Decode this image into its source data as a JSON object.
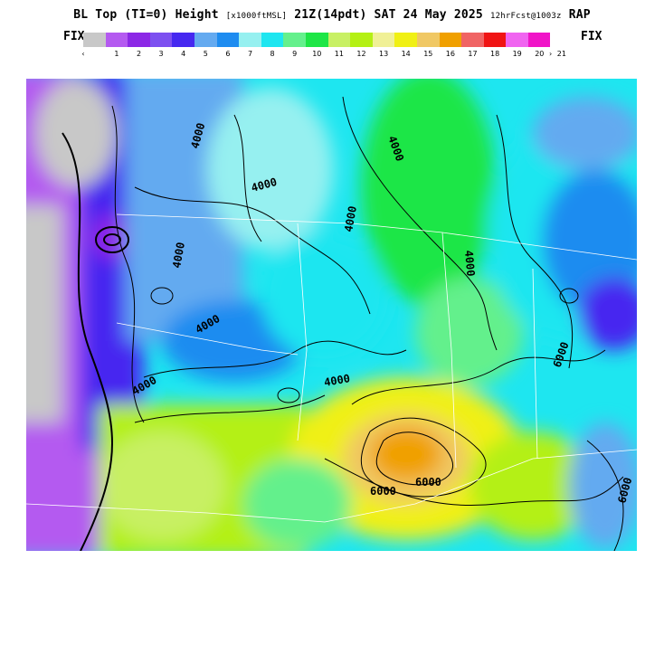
{
  "title": {
    "main": "BL Top (TI=0) Height",
    "units": "[x1000ftMSL]",
    "valid": "21Z(14pdt) SAT 24 May 2025",
    "init": "12hrFcst@1003z",
    "model": "RAP"
  },
  "colorbar": {
    "fix_left": "FIX",
    "fix_right": "FIX",
    "colors": [
      "#c8c8c8",
      "#b45af0",
      "#8c28e6",
      "#7d50f0",
      "#4628f0",
      "#64aaf0",
      "#1e8cf0",
      "#96f0f0",
      "#1ee6f0",
      "#64f08c",
      "#1ee646",
      "#c8f064",
      "#b4f014",
      "#f0f096",
      "#f0f014",
      "#f0c864",
      "#f0a000",
      "#f06464",
      "#f01414",
      "#f064f0",
      "#f014c8"
    ],
    "labels": [
      "‹",
      "1",
      "2",
      "3",
      "4",
      "5",
      "6",
      "7",
      "8",
      "9",
      "10",
      "11",
      "12",
      "13",
      "14",
      "15",
      "16",
      "17",
      "18",
      "19",
      "20",
      "21",
      "›"
    ]
  },
  "map": {
    "contour_labels": [
      "4000",
      "4000",
      "4000",
      "4000",
      "4000",
      "4000",
      "4000",
      "4000",
      "4000",
      "6000",
      "6000",
      "6000",
      "6000"
    ]
  }
}
